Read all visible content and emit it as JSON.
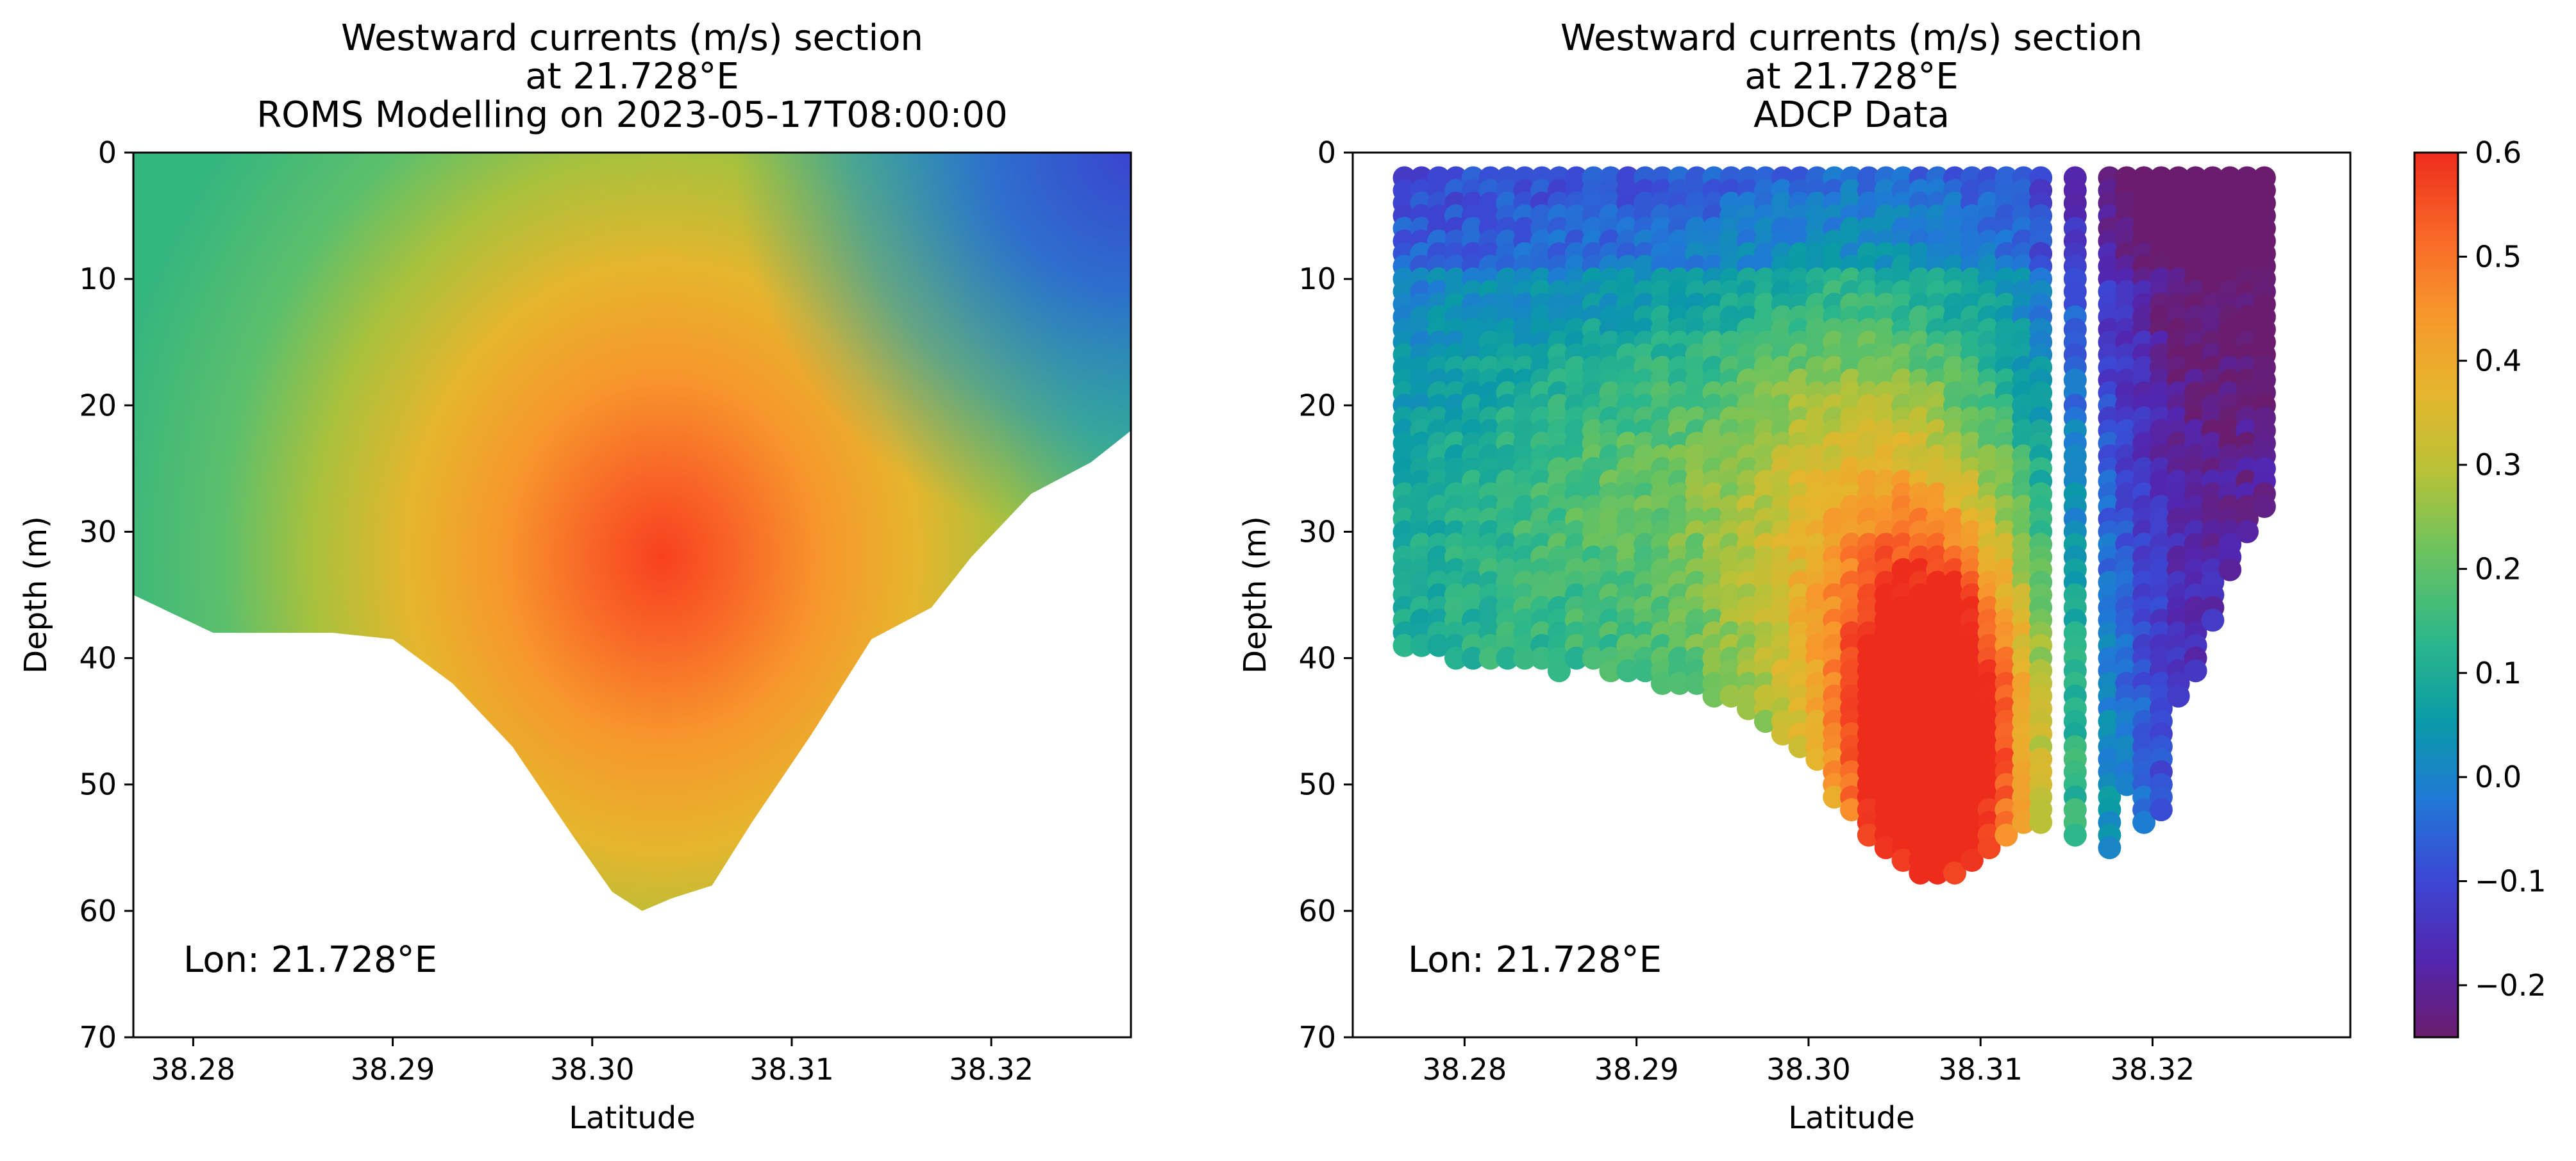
{
  "chart_data": [
    {
      "type": "heatmap",
      "subtype": "filled-contour",
      "title_lines": [
        "Westward currents (m/s) section",
        "at 21.728°E",
        "ROMS Modelling on 2023-05-17T08:00:00"
      ],
      "xlabel": "Latitude",
      "ylabel": "Depth (m)",
      "xlim": [
        38.277,
        38.327
      ],
      "ylim": [
        70,
        0
      ],
      "xticks": [
        38.28,
        38.29,
        38.3,
        38.31,
        38.32
      ],
      "xtick_labels": [
        "38.28",
        "38.29",
        "38.30",
        "38.31",
        "38.32"
      ],
      "yticks": [
        0,
        10,
        20,
        30,
        40,
        50,
        60,
        70
      ],
      "ytick_labels": [
        "0",
        "10",
        "20",
        "30",
        "40",
        "50",
        "60",
        "70"
      ],
      "annotation": "Lon: 21.728°E",
      "core": {
        "lat": 38.3035,
        "depth": 32,
        "value": 0.55
      },
      "bottom_profile": {
        "lat": [
          38.277,
          38.281,
          38.284,
          38.287,
          38.29,
          38.293,
          38.296,
          38.299,
          38.301,
          38.3025,
          38.304,
          38.306,
          38.308,
          38.311,
          38.314,
          38.317,
          38.319,
          38.322,
          38.325,
          38.327
        ],
        "depth": [
          35,
          38,
          38,
          38,
          38.5,
          42,
          47,
          54,
          58.5,
          60,
          59,
          58,
          53,
          46,
          38.5,
          36,
          32,
          27,
          24.5,
          22
        ]
      }
    },
    {
      "type": "scatter",
      "title_lines": [
        "Westward currents (m/s) section",
        "at 21.728°E",
        "ADCP Data"
      ],
      "xlabel": "Latitude",
      "ylabel": "Depth (m)",
      "xlim": [
        38.2735,
        38.3315
      ],
      "ylim": [
        70,
        0
      ],
      "xticks": [
        38.28,
        38.29,
        38.3,
        38.31,
        38.32
      ],
      "xtick_labels": [
        "38.28",
        "38.29",
        "38.30",
        "38.31",
        "38.32"
      ],
      "yticks": [
        0,
        10,
        20,
        30,
        40,
        50,
        60,
        70
      ],
      "ytick_labels": [
        "0",
        "10",
        "20",
        "30",
        "40",
        "50",
        "60",
        "70"
      ],
      "annotation": "Lon: 21.728°E",
      "profile_lat_range": [
        38.2765,
        38.3265
      ],
      "profile_count": 51,
      "depth_bins": {
        "start": 2,
        "step": 1
      },
      "bottom_depths": [
        39,
        39,
        39,
        40,
        40,
        40,
        40,
        40,
        40,
        41,
        40,
        40,
        41,
        41,
        41,
        42,
        42,
        42,
        43,
        43,
        44,
        45,
        46,
        47,
        48,
        51,
        52,
        54,
        55,
        56,
        57,
        57,
        57,
        56,
        55,
        54,
        53,
        53,
        52,
        54,
        53,
        55,
        50,
        53,
        52,
        43,
        41,
        37,
        33,
        30,
        28
      ],
      "gap_profiles": [
        38,
        40
      ],
      "core": {
        "lat": 38.3075,
        "depth": 47,
        "value": 0.6
      },
      "colorbar": {
        "vmin": -0.25,
        "vmax": 0.6,
        "ticks": [
          -0.2,
          -0.1,
          0.0,
          0.1,
          0.2,
          0.3,
          0.4,
          0.5,
          0.6
        ],
        "tick_labels": [
          "−0.2",
          "−0.1",
          "0.0",
          "0.1",
          "0.2",
          "0.3",
          "0.4",
          "0.5",
          "0.6"
        ],
        "colormap": [
          "#6a1d6e",
          "#5226b0",
          "#3b48d4",
          "#2079d6",
          "#0a9ba6",
          "#2db78a",
          "#6cc35e",
          "#b8c238",
          "#e6b52d",
          "#f7962c",
          "#f86527",
          "#ee2c1e"
        ]
      }
    }
  ]
}
